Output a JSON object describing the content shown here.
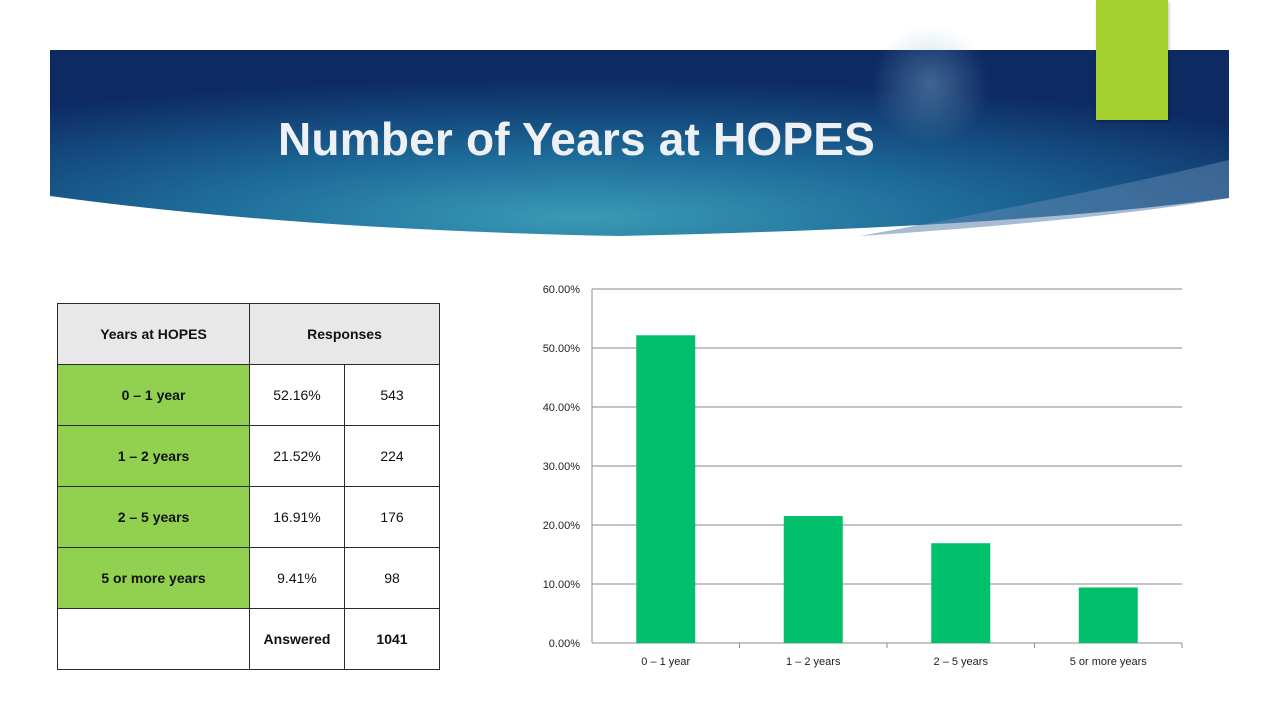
{
  "slide": {
    "title": "Number of Years at HOPES",
    "colors": {
      "banner_dark": "#0e2a5e",
      "banner_mid": "#2b87a6",
      "accent": "#a5d12f",
      "category_cell": "#92d050",
      "header_cell": "#e8e8e8",
      "bar": "#00c06b"
    }
  },
  "table": {
    "header": {
      "category": "Years at HOPES",
      "responses": "Responses"
    },
    "rows": [
      {
        "label": "0 – 1 year",
        "percent": "52.16%",
        "count": "543"
      },
      {
        "label": "1 – 2 years",
        "percent": "21.52%",
        "count": "224"
      },
      {
        "label": "2 – 5 years",
        "percent": "16.91%",
        "count": "176"
      },
      {
        "label": "5 or more years",
        "percent": "9.41%",
        "count": "98"
      }
    ],
    "footer": {
      "label": "Answered",
      "total": "1041"
    }
  },
  "chart_data": {
    "type": "bar",
    "categories": [
      "0 – 1 year",
      "1 – 2 years",
      "2 – 5 years",
      "5 or more years"
    ],
    "values": [
      52.16,
      21.52,
      16.91,
      9.41
    ],
    "title": "",
    "xlabel": "",
    "ylabel": "",
    "ylim": [
      0,
      60
    ],
    "yticks": [
      "0.00%",
      "10.00%",
      "20.00%",
      "30.00%",
      "40.00%",
      "50.00%",
      "60.00%"
    ],
    "grid": true,
    "legend": "none"
  }
}
